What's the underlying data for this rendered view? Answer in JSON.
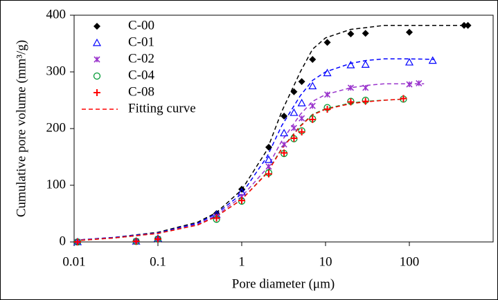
{
  "chart_data": {
    "type": "scatter",
    "xscale": "log",
    "x_label": "Pore diameter (μm)",
    "y_label": "Cumulative pore volume (mm³/g)",
    "xlim": [
      0.01,
      1000
    ],
    "xticks": [
      0.01,
      0.1,
      1,
      10,
      100
    ],
    "ylim": [
      0,
      400
    ],
    "yticks": [
      0,
      100,
      200,
      300,
      400
    ],
    "legend": "top-left",
    "fit_label": "Fitting curve",
    "fit_legend_color": "#ff0000",
    "series": [
      {
        "name": "C-00",
        "color": "#000000",
        "marker": "diamond",
        "x": [
          0.011,
          0.055,
          0.1,
          0.5,
          1,
          2.1,
          3.2,
          4.2,
          5.2,
          7,
          10.5,
          20,
          30,
          100,
          450,
          500
        ],
        "values": [
          0,
          2,
          6,
          50,
          93,
          167,
          222,
          265,
          283,
          322,
          352,
          367,
          368,
          370,
          382,
          382
        ],
        "fit": {
          "color": "#000000",
          "x": [
            0.01,
            0.03,
            0.1,
            0.3,
            0.5,
            1,
            2,
            3,
            5,
            7,
            10,
            20,
            30,
            50,
            100,
            200,
            500
          ],
          "values": [
            3,
            8,
            17,
            35,
            52,
            92,
            162,
            230,
            300,
            340,
            360,
            375,
            378,
            382,
            382,
            382,
            382
          ]
        }
      },
      {
        "name": "C-01",
        "color": "#0000ff",
        "marker": "triangle",
        "x": [
          0.011,
          0.055,
          0.1,
          0.5,
          1,
          2.1,
          3.2,
          4.2,
          5.2,
          7,
          10.5,
          20,
          30,
          100,
          190
        ],
        "values": [
          0,
          1,
          6,
          48,
          88,
          145,
          192,
          228,
          245,
          275,
          298,
          312,
          313,
          317,
          320
        ],
        "fit": {
          "color": "#0000ff",
          "x": [
            0.01,
            0.03,
            0.1,
            0.3,
            0.5,
            1,
            2,
            3,
            5,
            7,
            10,
            20,
            30,
            50,
            100,
            200
          ],
          "values": [
            3,
            8,
            16,
            33,
            50,
            85,
            150,
            205,
            258,
            285,
            300,
            315,
            320,
            323,
            323,
            322
          ]
        }
      },
      {
        "name": "C-02",
        "color": "#9933cc",
        "marker": "star",
        "x": [
          0.011,
          0.055,
          0.1,
          0.5,
          1,
          2.1,
          3.2,
          4.2,
          5.2,
          7,
          10.5,
          20,
          30,
          100,
          130
        ],
        "values": [
          0,
          1,
          5,
          45,
          80,
          133,
          172,
          201,
          218,
          240,
          260,
          272,
          272,
          278,
          280
        ],
        "fit": {
          "color": "#9933cc",
          "x": [
            0.01,
            0.03,
            0.1,
            0.3,
            0.5,
            1,
            2,
            3,
            5,
            7,
            10,
            20,
            30,
            50,
            100,
            150
          ],
          "values": [
            3,
            7,
            15,
            31,
            47,
            80,
            130,
            178,
            225,
            248,
            260,
            272,
            276,
            279,
            279,
            279
          ]
        }
      },
      {
        "name": "C-04",
        "color": "#009933",
        "marker": "circle",
        "x": [
          0.011,
          0.055,
          0.1,
          0.5,
          1,
          2.1,
          3.2,
          4.2,
          5.2,
          7,
          10.5,
          20,
          30,
          85
        ],
        "values": [
          0,
          1,
          5,
          40,
          72,
          122,
          156,
          182,
          196,
          217,
          237,
          248,
          250,
          252
        ],
        "fit": {
          "color": "#009933",
          "x": [
            0.01,
            0.03,
            0.1,
            0.3,
            0.5,
            1,
            2,
            3,
            5,
            7,
            10,
            20,
            30,
            50,
            85
          ],
          "values": [
            2,
            7,
            15,
            30,
            45,
            75,
            122,
            165,
            205,
            225,
            235,
            245,
            248,
            250,
            252
          ]
        }
      },
      {
        "name": "C-08",
        "color": "#ff0000",
        "marker": "plus",
        "x": [
          0.011,
          0.055,
          0.1,
          0.5,
          1,
          2.1,
          3.2,
          4.2,
          5.2,
          7,
          10.5,
          20,
          30,
          85
        ],
        "values": [
          0,
          1,
          5,
          42,
          73,
          120,
          157,
          183,
          194,
          216,
          234,
          247,
          248,
          253
        ],
        "fit": {
          "color": "#ff0000",
          "x": [
            0.01,
            0.03,
            0.1,
            0.3,
            0.5,
            1,
            2,
            3,
            5,
            7,
            10,
            20,
            30,
            50,
            85
          ],
          "values": [
            2,
            7,
            15,
            30,
            45,
            75,
            121,
            164,
            204,
            224,
            234,
            244,
            247,
            250,
            252
          ]
        }
      }
    ]
  }
}
